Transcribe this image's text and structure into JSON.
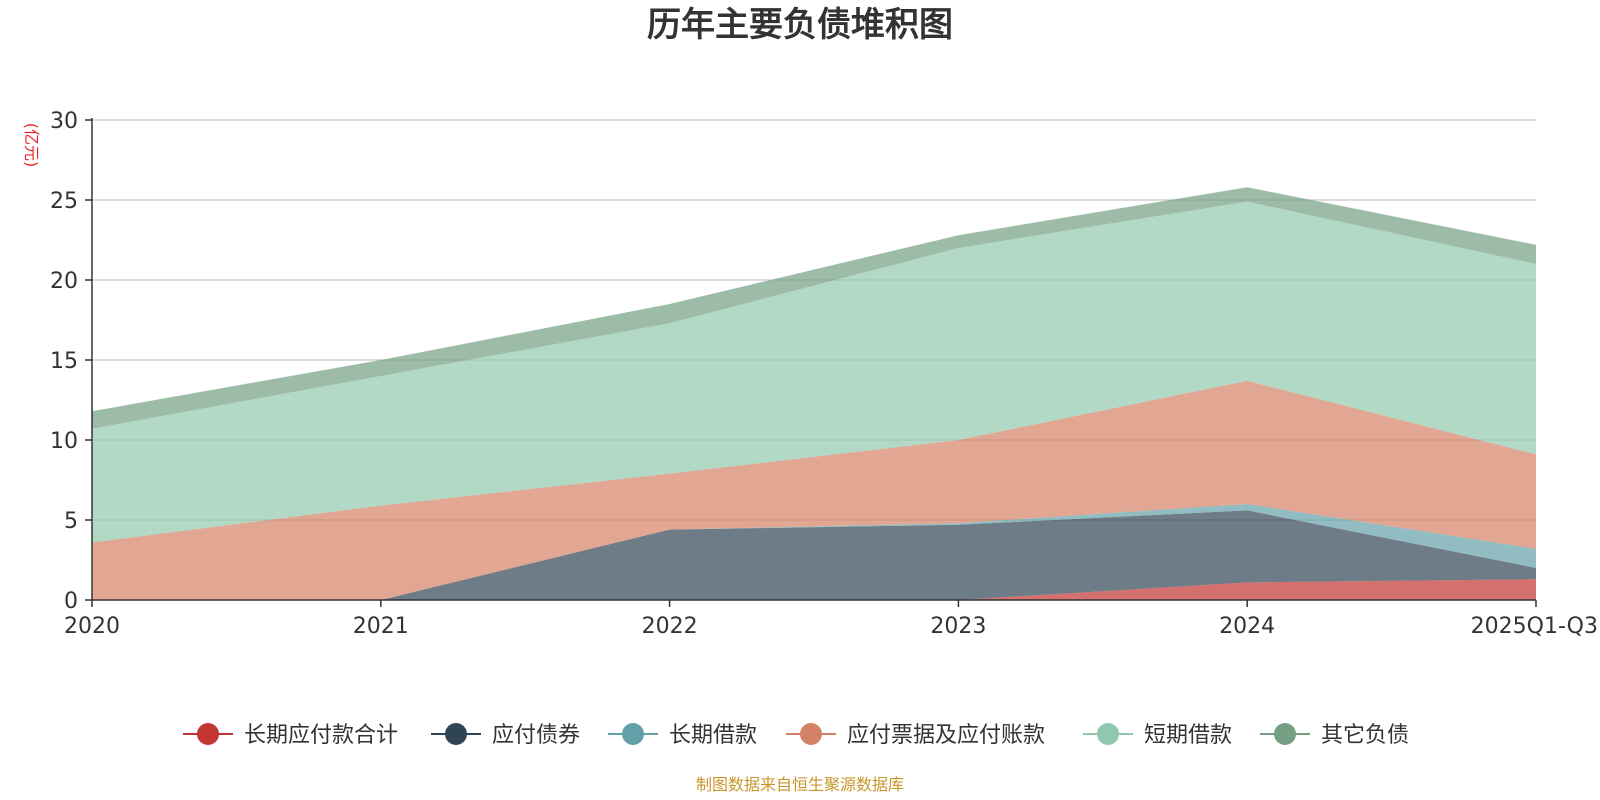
{
  "chart_data": {
    "type": "area",
    "stacked": true,
    "title": "历年主要负债堆积图",
    "ylabel": "(亿元)",
    "xlabel": "",
    "categories": [
      "2020",
      "2021",
      "2022",
      "2023",
      "2024",
      "2025Q1-Q3"
    ],
    "ylim": [
      0,
      30
    ],
    "yticks": [
      0,
      5,
      10,
      15,
      20,
      25,
      30
    ],
    "grid": true,
    "legend_position": "bottom",
    "series": [
      {
        "name": "长期应付款合计",
        "color": "#c23531",
        "values": [
          0,
          0,
          0,
          0,
          1.1,
          1.3
        ]
      },
      {
        "name": "应付债券",
        "color": "#2f4554",
        "values": [
          0,
          0,
          4.4,
          4.7,
          4.5,
          0.7
        ]
      },
      {
        "name": "长期借款",
        "color": "#61a0a8",
        "values": [
          0,
          0,
          0,
          0.1,
          0.4,
          1.2
        ]
      },
      {
        "name": "应付票据及应付账款",
        "color": "#d48265",
        "values": [
          3.6,
          5.9,
          3.5,
          5.2,
          7.7,
          5.9
        ]
      },
      {
        "name": "短期借款",
        "color": "#91c7ae",
        "values": [
          7.1,
          8.1,
          9.4,
          12.0,
          11.2,
          11.9
        ]
      },
      {
        "name": "其它负债",
        "color": "#749f83",
        "values": [
          1.1,
          1.0,
          1.2,
          0.8,
          0.9,
          1.2
        ]
      }
    ],
    "source": "制图数据来自恒生聚源数据库"
  }
}
